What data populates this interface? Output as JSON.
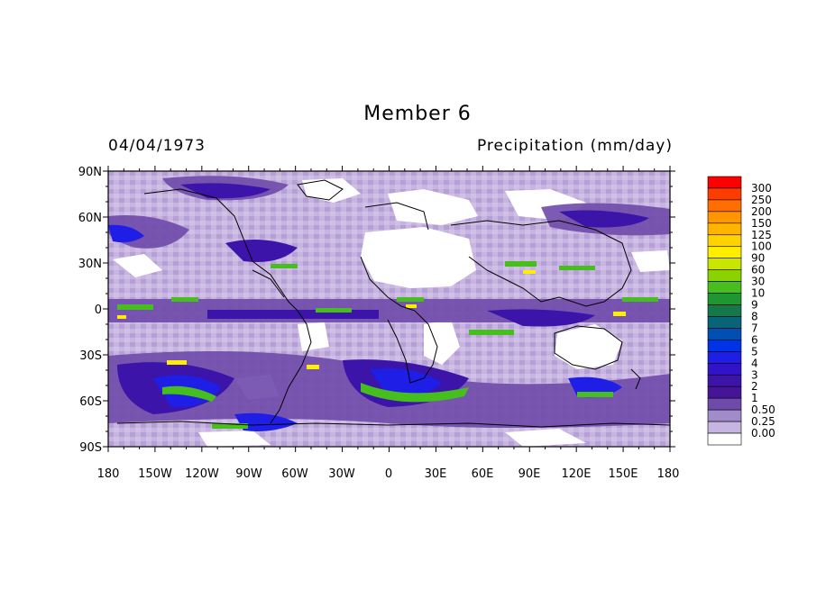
{
  "map": {
    "title": "Member 6",
    "date": "04/04/1973",
    "variable": "Precipitation (mm/day)",
    "lon_ticks": [
      "180",
      "150W",
      "120W",
      "90W",
      "60W",
      "30W",
      "0",
      "30E",
      "60E",
      "90E",
      "120E",
      "150E",
      "180"
    ],
    "lat_ticks": [
      "90N",
      "60N",
      "30N",
      "0",
      "30S",
      "60S",
      "90S"
    ]
  },
  "colorbar": {
    "levels": [
      "300",
      "250",
      "200",
      "150",
      "125",
      "100",
      "90",
      "60",
      "30",
      "10",
      "9",
      "8",
      "7",
      "6",
      "5",
      "4",
      "3",
      "2",
      "1",
      "0.50",
      "0.25",
      "0.00"
    ],
    "colors": [
      "#ff0000",
      "#ff3c00",
      "#ff6e00",
      "#ff9600",
      "#ffb400",
      "#ffd200",
      "#ffee00",
      "#c8e600",
      "#8cd200",
      "#46be1e",
      "#1e9632",
      "#14784b",
      "#0a6478",
      "#0050b4",
      "#0032e6",
      "#1e1ee6",
      "#3214c8",
      "#3c14aa",
      "#461496",
      "#6e4aaa",
      "#a08cc8",
      "#c8b4e1",
      "#ffffff"
    ]
  }
}
